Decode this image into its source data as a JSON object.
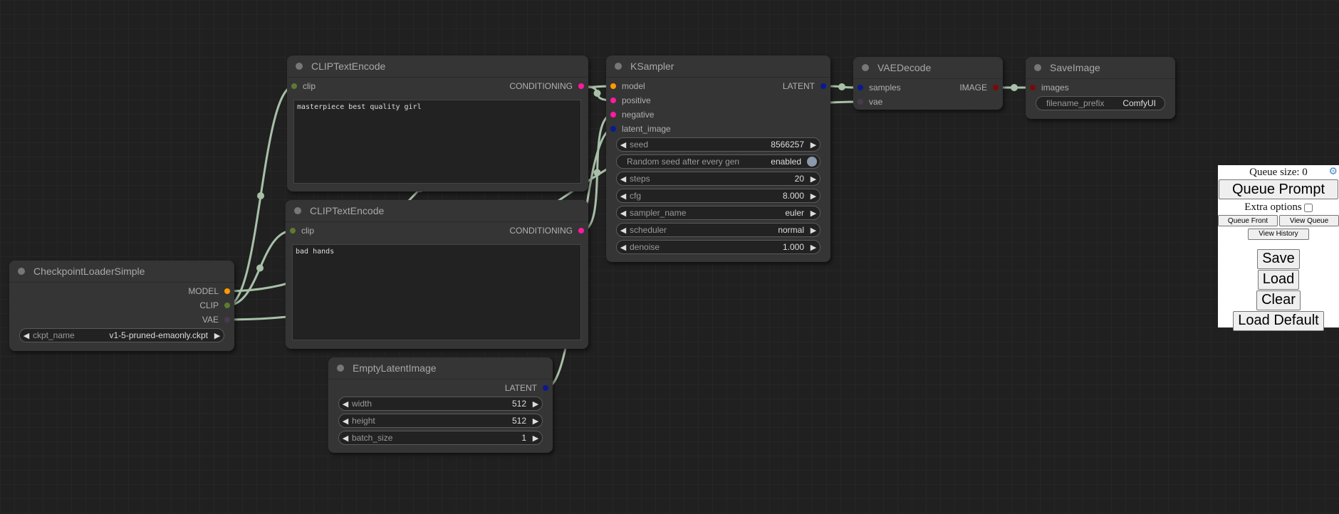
{
  "colors": {
    "MODEL": "#ff9a00",
    "CLIP": "#5e7a30",
    "VAE": "#4a3a50",
    "CONDITIONING": "#ff1a9f",
    "LATENT": "#0a1a90",
    "IMAGE": "#7a0a0a",
    "link": "#a8c0a8"
  },
  "nodes": [
    {
      "id": "ckpt",
      "title": "CheckpointLoaderSimple",
      "inputs": [],
      "outputs": [
        {
          "name": "MODEL",
          "type": "MODEL"
        },
        {
          "name": "CLIP",
          "type": "CLIP"
        },
        {
          "name": "VAE",
          "type": "VAE"
        }
      ],
      "widgets": [
        {
          "name": "ckpt_name",
          "value": "v1-5-pruned-emaonly.ckpt"
        }
      ]
    },
    {
      "id": "clip1",
      "title": "CLIPTextEncode",
      "inputs": [
        {
          "name": "clip",
          "type": "CLIP"
        }
      ],
      "outputs": [
        {
          "name": "CONDITIONING",
          "type": "CONDITIONING"
        }
      ],
      "text": "masterpiece best quality girl",
      "widgets": []
    },
    {
      "id": "clip2",
      "title": "CLIPTextEncode",
      "inputs": [
        {
          "name": "clip",
          "type": "CLIP"
        }
      ],
      "outputs": [
        {
          "name": "CONDITIONING",
          "type": "CONDITIONING"
        }
      ],
      "text": "bad hands",
      "widgets": []
    },
    {
      "id": "ks",
      "title": "KSampler",
      "inputs": [
        {
          "name": "model",
          "type": "MODEL"
        },
        {
          "name": "positive",
          "type": "CONDITIONING"
        },
        {
          "name": "negative",
          "type": "CONDITIONING"
        },
        {
          "name": "latent_image",
          "type": "LATENT"
        }
      ],
      "outputs": [
        {
          "name": "LATENT",
          "type": "LATENT"
        }
      ],
      "widgets": [
        {
          "name": "seed",
          "value": "8566257"
        },
        {
          "name": "Random seed after every gen",
          "value": "enabled",
          "toggle": true
        },
        {
          "name": "steps",
          "value": "20"
        },
        {
          "name": "cfg",
          "value": "8.000"
        },
        {
          "name": "sampler_name",
          "value": "euler"
        },
        {
          "name": "scheduler",
          "value": "normal"
        },
        {
          "name": "denoise",
          "value": "1.000"
        }
      ]
    },
    {
      "id": "vae",
      "title": "VAEDecode",
      "inputs": [
        {
          "name": "samples",
          "type": "LATENT"
        },
        {
          "name": "vae",
          "type": "VAE"
        }
      ],
      "outputs": [
        {
          "name": "IMAGE",
          "type": "IMAGE"
        }
      ],
      "widgets": []
    },
    {
      "id": "save",
      "title": "SaveImage",
      "inputs": [
        {
          "name": "images",
          "type": "IMAGE"
        }
      ],
      "outputs": [],
      "widgets": [
        {
          "name": "filename_prefix",
          "value": "ComfyUI",
          "text": true
        }
      ]
    },
    {
      "id": "empty",
      "title": "EmptyLatentImage",
      "inputs": [],
      "outputs": [
        {
          "name": "LATENT",
          "type": "LATENT"
        }
      ],
      "widgets": [
        {
          "name": "width",
          "value": "512"
        },
        {
          "name": "height",
          "value": "512"
        },
        {
          "name": "batch_size",
          "value": "1"
        }
      ]
    }
  ],
  "links": [
    [
      "ckpt",
      0,
      "ks",
      0
    ],
    [
      "ckpt",
      1,
      "clip1",
      0
    ],
    [
      "ckpt",
      1,
      "clip2",
      0
    ],
    [
      "ckpt",
      2,
      "vae",
      1
    ],
    [
      "clip1",
      0,
      "ks",
      1
    ],
    [
      "clip2",
      0,
      "ks",
      2
    ],
    [
      "empty",
      0,
      "ks",
      3
    ],
    [
      "ks",
      0,
      "vae",
      0
    ],
    [
      "vae",
      0,
      "save",
      0
    ]
  ],
  "panel": {
    "queue_size": "Queue size: 0",
    "gear_icon": "gear-icon",
    "queue_prompt": "Queue Prompt",
    "extra_options": "Extra options",
    "queue_front": "Queue Front",
    "view_queue": "View Queue",
    "view_history": "View History",
    "save": "Save",
    "load": "Load",
    "clear": "Clear",
    "load_default": "Load Default"
  }
}
